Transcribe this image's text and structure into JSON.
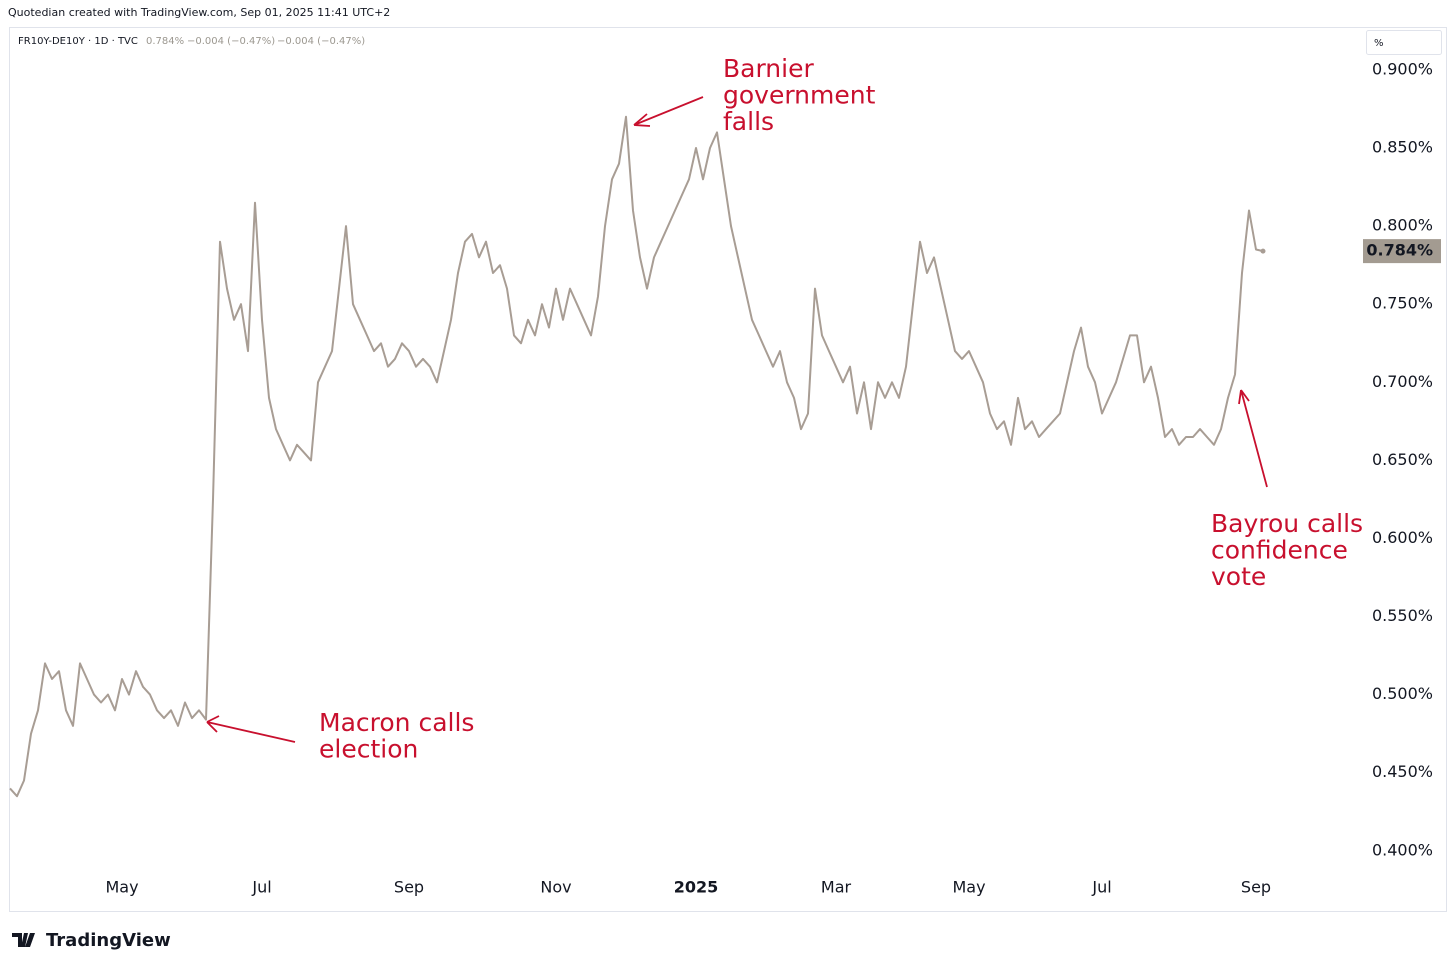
{
  "header": "Quotedian created with TradingView.com, Sep 01, 2025 11:41 UTC+2",
  "logo": "TradingView",
  "chart_data": {
    "type": "line",
    "symbol": "FR10Y-DE10Y · 1D · TVC",
    "quote": [
      "0.784%",
      "−0.004 (−0.47%)",
      "−0.004 (−0.47%)"
    ],
    "unit": "%",
    "color": "#a89d94",
    "values": [
      0.44,
      0.435,
      0.445,
      0.475,
      0.49,
      0.52,
      0.51,
      0.515,
      0.49,
      0.48,
      0.52,
      0.51,
      0.5,
      0.495,
      0.5,
      0.49,
      0.51,
      0.5,
      0.515,
      0.505,
      0.5,
      0.49,
      0.485,
      0.49,
      0.48,
      0.495,
      0.485,
      0.49,
      0.484,
      0.625,
      0.79,
      0.76,
      0.74,
      0.75,
      0.72,
      0.815,
      0.74,
      0.69,
      0.67,
      0.66,
      0.65,
      0.66,
      0.655,
      0.65,
      0.7,
      0.71,
      0.72,
      0.76,
      0.8,
      0.75,
      0.74,
      0.73,
      0.72,
      0.725,
      0.71,
      0.715,
      0.725,
      0.72,
      0.71,
      0.715,
      0.71,
      0.7,
      0.72,
      0.74,
      0.77,
      0.79,
      0.795,
      0.78,
      0.79,
      0.77,
      0.775,
      0.76,
      0.73,
      0.725,
      0.74,
      0.73,
      0.75,
      0.735,
      0.76,
      0.74,
      0.76,
      0.75,
      0.74,
      0.73,
      0.755,
      0.8,
      0.83,
      0.84,
      0.87,
      0.81,
      0.78,
      0.76,
      0.78,
      0.79,
      0.8,
      0.81,
      0.82,
      0.83,
      0.85,
      0.83,
      0.85,
      0.86,
      0.83,
      0.8,
      0.78,
      0.76,
      0.74,
      0.73,
      0.72,
      0.71,
      0.72,
      0.7,
      0.69,
      0.67,
      0.68,
      0.76,
      0.73,
      0.72,
      0.71,
      0.7,
      0.71,
      0.68,
      0.7,
      0.67,
      0.7,
      0.69,
      0.7,
      0.69,
      0.71,
      0.75,
      0.79,
      0.77,
      0.78,
      0.76,
      0.74,
      0.72,
      0.715,
      0.72,
      0.71,
      0.7,
      0.68,
      0.67,
      0.675,
      0.66,
      0.69,
      0.67,
      0.675,
      0.665,
      0.67,
      0.675,
      0.68,
      0.7,
      0.72,
      0.735,
      0.71,
      0.7,
      0.68,
      0.69,
      0.7,
      0.715,
      0.73,
      0.73,
      0.7,
      0.71,
      0.69,
      0.665,
      0.67,
      0.66,
      0.665,
      0.665,
      0.67,
      0.665,
      0.66,
      0.67,
      0.69,
      0.705,
      0.77,
      0.81,
      0.785,
      0.784
    ],
    "last_value_label": "0.784%",
    "xlim": [
      0,
      193
    ],
    "xticks": [
      {
        "value": 16,
        "label": "May"
      },
      {
        "value": 36,
        "label": "Jul"
      },
      {
        "value": 57,
        "label": "Sep"
      },
      {
        "value": 78,
        "label": "Nov"
      },
      {
        "value": 98,
        "label": "2025"
      },
      {
        "value": 118,
        "label": "Mar"
      },
      {
        "value": 137,
        "label": "May"
      },
      {
        "value": 156,
        "label": "Jul"
      },
      {
        "value": 178,
        "label": "Sep"
      }
    ],
    "ylim": [
      0.389,
      0.9275
    ],
    "yticks": [
      {
        "value": 0.4,
        "label": "0.400%"
      },
      {
        "value": 0.45,
        "label": "0.450%"
      },
      {
        "value": 0.5,
        "label": "0.500%"
      },
      {
        "value": 0.55,
        "label": "0.550%"
      },
      {
        "value": 0.6,
        "label": "0.600%"
      },
      {
        "value": 0.65,
        "label": "0.650%"
      },
      {
        "value": 0.7,
        "label": "0.700%"
      },
      {
        "value": 0.75,
        "label": "0.750%"
      },
      {
        "value": 0.8,
        "label": "0.800%"
      },
      {
        "value": 0.85,
        "label": "0.850%"
      },
      {
        "value": 0.9,
        "label": "0.900%"
      }
    ],
    "annotations": [
      {
        "lines": [
          "Barnier",
          "government",
          "falls"
        ]
      },
      {
        "lines": [
          "Macron calls",
          "election"
        ]
      },
      {
        "lines": [
          "Bayrou calls",
          "confidence",
          "vote"
        ]
      }
    ]
  }
}
